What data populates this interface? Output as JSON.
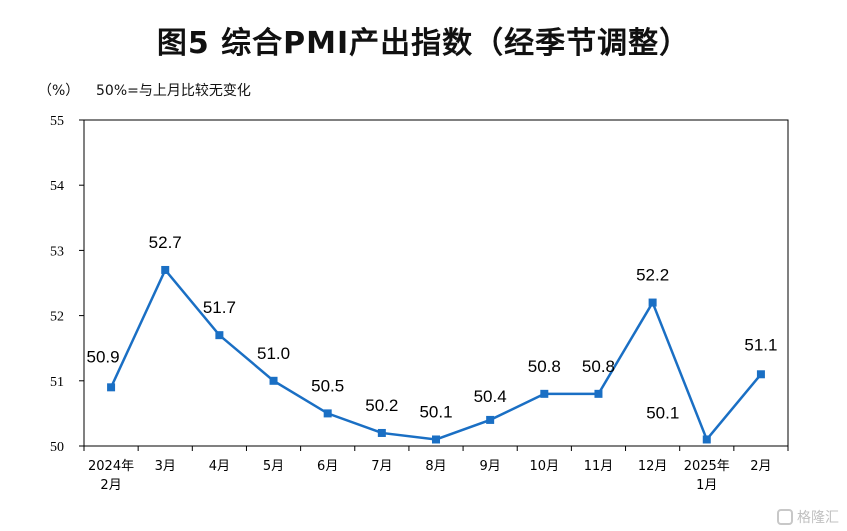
{
  "chart_data": {
    "type": "line",
    "title": "图5  综合PMI产出指数（经季节调整）",
    "unit_label": "（%）",
    "note": "50%=与上月比较无变化",
    "categories": [
      "2024年\n2月",
      "3月",
      "4月",
      "5月",
      "6月",
      "7月",
      "8月",
      "9月",
      "10月",
      "11月",
      "12月",
      "2025年\n1月",
      "2月"
    ],
    "series": [
      {
        "values": [
          50.9,
          52.7,
          51.7,
          51.0,
          50.5,
          50.2,
          50.1,
          50.4,
          50.8,
          50.8,
          52.2,
          50.1,
          51.1
        ],
        "labels": [
          "50.9",
          "52.7",
          "51.7",
          "51.0",
          "50.5",
          "50.2",
          "50.1",
          "50.4",
          "50.8",
          "50.8",
          "52.2",
          "50.1",
          "51.1"
        ],
        "color": "#1a6fc4"
      }
    ],
    "ylim": [
      50,
      55
    ],
    "yticks": [
      50,
      51,
      52,
      53,
      54,
      55
    ],
    "grid": false,
    "legend": "none"
  },
  "watermark": {
    "text": "格隆汇",
    "icon": "logo-icon"
  }
}
